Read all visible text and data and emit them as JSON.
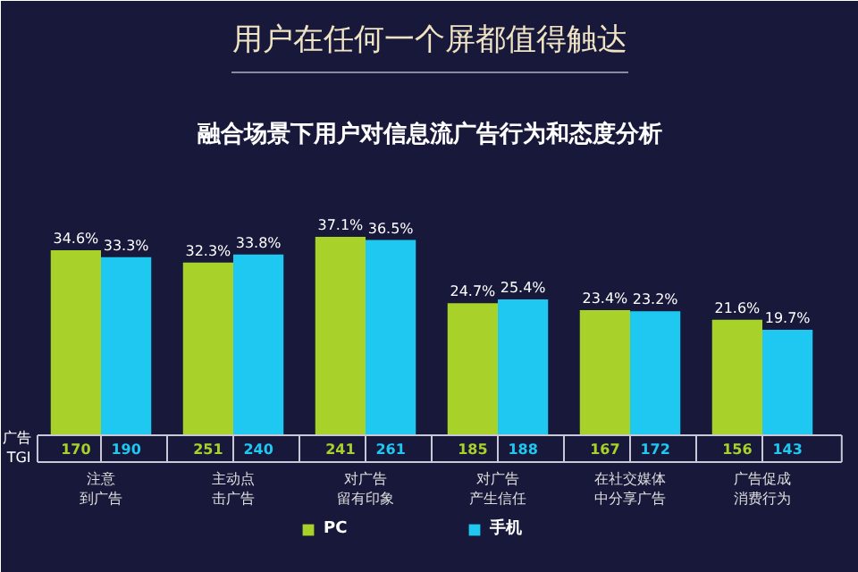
{
  "chart_data": {
    "type": "bar",
    "title": "用户在任何一个屏都值得触达",
    "subtitle": "融合场景下用户对信息流广告行为和态度分析",
    "categories": [
      "注意到广告",
      "主动点击广告",
      "对广告留有印象",
      "对广告产生信任",
      "在社交媒体中分享广告",
      "广告促成消费行为"
    ],
    "series": [
      {
        "name": "PC",
        "color": "#a8d12a",
        "values": [
          34.6,
          32.3,
          37.1,
          24.7,
          23.4,
          21.6
        ],
        "value_labels": [
          "34.6%",
          "32.3%",
          "37.1%",
          "24.7%",
          "23.4%",
          "21.6%"
        ]
      },
      {
        "name": "手机",
        "color": "#1ec8f0",
        "values": [
          33.3,
          33.8,
          36.5,
          25.4,
          23.2,
          19.7
        ],
        "value_labels": [
          "33.3%",
          "33.8%",
          "36.5%",
          "25.4%",
          "23.2%",
          "19.7%"
        ]
      }
    ],
    "annotations": [
      "广告\nTGI",
      "170",
      "190",
      "251",
      "240",
      "241",
      "261",
      "185",
      "188",
      "167",
      "172",
      "156",
      "143"
    ],
    "grid": false,
    "legend": "bottom"
  }
}
